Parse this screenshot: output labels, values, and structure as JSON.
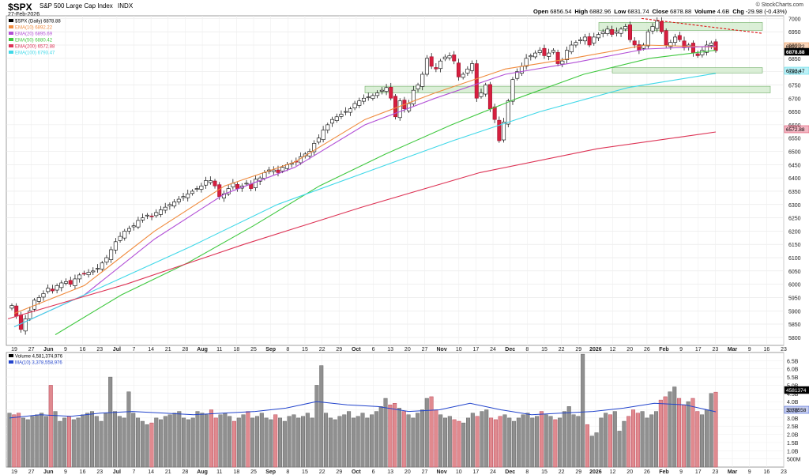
{
  "header": {
    "ticker": "$SPX",
    "name": "S&P 500 Large Cap Index",
    "exchange": "INDX",
    "date": "27-Feb-2026",
    "open_label": "Open",
    "open": "6856.54",
    "high_label": "High",
    "high": "6882.96",
    "low_label": "Low",
    "low": "6831.74",
    "close_label": "Close",
    "close": "6878.88",
    "volume_label": "Volume",
    "volume": "4.6B",
    "chg_label": "Chg",
    "chg": "-29.98 (-0.43%)",
    "credit": "© StockCharts.com"
  },
  "price_legend": [
    {
      "label": "$SPX (Daily) 6878.88",
      "color": "#000000"
    },
    {
      "label": "EMA(10) 6892.22",
      "color": "#f08a3c"
    },
    {
      "label": "EMA(20) 6895.69",
      "color": "#b24fd6"
    },
    {
      "label": "EMA(50) 6880.42",
      "color": "#3fc83f"
    },
    {
      "label": "EMA(200) 6572.88",
      "color": "#dd3355"
    },
    {
      "label": "EMA(100) 6793.47",
      "color": "#3fd8e8"
    }
  ],
  "volume_legend": [
    {
      "label": "Volume 4,581,374,976",
      "color": "#000000"
    },
    {
      "label": "MA(10) 3,378,558,976",
      "color": "#2244cc"
    }
  ],
  "price_tags": [
    "6892.22",
    "6878.88",
    "6793.47",
    "6572.88"
  ],
  "volume_tags": [
    "4581374",
    "3378558"
  ],
  "chart_data": [
    {
      "type": "line",
      "title": "$SPX S&P 500 Large Cap Index (Daily)",
      "x_tick_labels": [
        "19",
        "27",
        "Jun",
        "9",
        "16",
        "23",
        "Jul",
        "7",
        "14",
        "21",
        "28",
        "Aug",
        "11",
        "18",
        "25",
        "Sep",
        "8",
        "15",
        "22",
        "29",
        "Oct",
        "6",
        "13",
        "20",
        "27",
        "Nov",
        "10",
        "17",
        "24",
        "Dec",
        "8",
        "15",
        "22",
        "29",
        "2026",
        "12",
        "20",
        "26",
        "Feb",
        "9",
        "17",
        "23",
        "Mar",
        "9",
        "16",
        "23"
      ],
      "y_tick_labels": [
        "7000",
        "6950",
        "6900",
        "6850",
        "6800",
        "6750",
        "6700",
        "6650",
        "6600",
        "6550",
        "6500",
        "6450",
        "6400",
        "6350",
        "6300",
        "6250",
        "6200",
        "6150",
        "6100",
        "6050",
        "6000",
        "5950",
        "5900",
        "5850",
        "5800"
      ],
      "ylim": [
        5770,
        7010
      ],
      "series": [
        {
          "name": "$SPX (Daily)",
          "color": "#000000",
          "values": [
            5920,
            5880,
            5830,
            5870,
            5900,
            5940,
            5950,
            5965,
            5985,
            5975,
            5995,
            6005,
            6010,
            6000,
            6020,
            6035,
            6040,
            6045,
            6050,
            6060,
            6080,
            6100,
            6130,
            6160,
            6180,
            6200,
            6210,
            6220,
            6240,
            6250,
            6260,
            6255,
            6270,
            6280,
            6290,
            6300,
            6310,
            6320,
            6330,
            6340,
            6350,
            6360,
            6370,
            6390,
            6390,
            6370,
            6330,
            6340,
            6360,
            6380,
            6360,
            6370,
            6380,
            6360,
            6395,
            6400,
            6420,
            6430,
            6430,
            6420,
            6440,
            6450,
            6455,
            6460,
            6480,
            6490,
            6500,
            6530,
            6550,
            6580,
            6600,
            6620,
            6630,
            6640,
            6650,
            6660,
            6680,
            6690,
            6700,
            6705,
            6710,
            6720,
            6730,
            6740,
            6700,
            6630,
            6690,
            6660,
            6680,
            6730,
            6750,
            6790,
            6850,
            6820,
            6810,
            6840,
            6855,
            6860,
            6840,
            6780,
            6790,
            6810,
            6830,
            6700,
            6720,
            6750,
            6660,
            6620,
            6540,
            6610,
            6690,
            6770,
            6800,
            6820,
            6850,
            6860,
            6870,
            6880,
            6860,
            6870,
            6880,
            6830,
            6840,
            6880,
            6900,
            6910,
            6920,
            6930,
            6900,
            6930,
            6940,
            6950,
            6960,
            6940,
            6950,
            6960,
            6970,
            6920,
            6900,
            6880,
            6900,
            6950,
            6970,
            6990,
            6950,
            6900,
            6910,
            6930,
            6920,
            6890,
            6900,
            6870,
            6860,
            6880,
            6900,
            6908,
            6878.88
          ]
        },
        {
          "name": "EMA(10)",
          "color": "#f08a3c",
          "values": [
            5890,
            5995,
            6200,
            6370,
            6460,
            6620,
            6720,
            6810,
            6852,
            6900,
            6892.22
          ]
        },
        {
          "name": "EMA(20)",
          "color": "#b24fd6",
          "values": [
            5840,
            5960,
            6170,
            6340,
            6440,
            6600,
            6700,
            6790,
            6835,
            6885,
            6895.69
          ]
        },
        {
          "name": "EMA(50)",
          "color": "#3fc83f",
          "values": [
            5810,
            5960,
            6080,
            6220,
            6370,
            6490,
            6600,
            6700,
            6790,
            6850,
            6880.42
          ]
        },
        {
          "name": "EMA(100)",
          "color": "#3fd8e8",
          "values": [
            5840,
            5990,
            6140,
            6300,
            6420,
            6540,
            6650,
            6740,
            6793.47
          ]
        },
        {
          "name": "EMA(200)",
          "color": "#dd3355",
          "values": [
            5870,
            6000,
            6150,
            6290,
            6420,
            6510,
            6572.88
          ]
        }
      ],
      "zones": [
        [
          6955,
          6985
        ],
        [
          6795,
          6815
        ],
        [
          6720,
          6745
        ]
      ],
      "trendline": [
        [
          7000,
          6944
        ]
      ]
    },
    {
      "type": "bar",
      "title": "Volume",
      "y_tick_labels": [
        "6.5B",
        "6.0B",
        "5.5B",
        "5.0B",
        "4.5B",
        "4.0B",
        "3.5B",
        "3.0B",
        "2.5B",
        "2.0B",
        "1.5B",
        "1.0B",
        "500M"
      ],
      "ylim": [
        0,
        7000000000
      ],
      "series": [
        {
          "name": "Volume",
          "color": "#cc6666",
          "values": [
            3.3,
            3.2,
            3.3,
            3.0,
            2.9,
            3.1,
            3.2,
            3.3,
            3.1,
            5.0,
            3.4,
            2.8,
            3.0,
            3.1,
            2.9,
            3.0,
            3.2,
            3.3,
            3.4,
            3.1,
            2.8,
            3.3,
            5.5,
            3.4,
            3.1,
            3.0,
            4.6,
            3.3,
            3.0,
            2.8,
            2.6,
            2.7,
            3.0,
            2.9,
            3.1,
            3.2,
            3.3,
            3.4,
            3.0,
            2.9,
            3.0,
            3.4,
            3.3,
            3.2,
            3.5,
            3.0,
            3.2,
            3.3,
            3.1,
            2.8,
            3.0,
            3.2,
            3.4,
            3.0,
            3.1,
            3.3,
            3.0,
            2.9,
            3.2,
            3.0,
            2.8,
            3.1,
            3.2,
            3.0,
            3.1,
            3.3,
            3.0,
            5.0,
            6.2,
            3.3,
            3.0,
            2.9,
            3.1,
            3.2,
            3.4,
            3.0,
            3.1,
            3.3,
            3.0,
            3.2,
            3.4,
            3.7,
            4.2,
            3.8,
            3.9,
            3.6,
            3.4,
            3.2,
            3.0,
            3.3,
            3.5,
            4.2,
            4.3,
            3.5,
            3.2,
            3.0,
            3.1,
            2.9,
            2.8,
            2.7,
            3.0,
            3.3,
            3.1,
            3.4,
            3.5,
            3.0,
            2.9,
            3.1,
            3.2,
            3.0,
            2.8,
            3.0,
            3.2,
            3.3,
            3.0,
            3.1,
            3.4,
            3.2,
            3.1,
            2.9,
            3.0,
            3.4,
            3.7,
            3.2,
            3.1,
            6.9,
            2.6,
            1.9,
            2.1,
            3.0,
            3.3,
            3.2,
            3.4,
            2.2,
            2.8,
            3.1,
            3.5,
            3.3,
            3.4,
            3.0,
            3.2,
            3.4,
            4.1,
            4.3,
            4.6,
            4.9,
            4.2,
            3.8,
            4.0,
            4.2,
            3.4,
            3.2,
            3.5,
            4.5,
            4.581
          ]
        },
        {
          "name": "MA(10)",
          "color": "#2244cc",
          "values": [
            3.0,
            3.2,
            3.1,
            3.3,
            3.4,
            3.3,
            3.2,
            3.3,
            3.4,
            3.6,
            4.0,
            3.8,
            3.7,
            3.4,
            3.5,
            3.9,
            3.5,
            3.2,
            3.3,
            3.4,
            3.6,
            3.9,
            3.8,
            3.378
          ]
        }
      ]
    }
  ]
}
